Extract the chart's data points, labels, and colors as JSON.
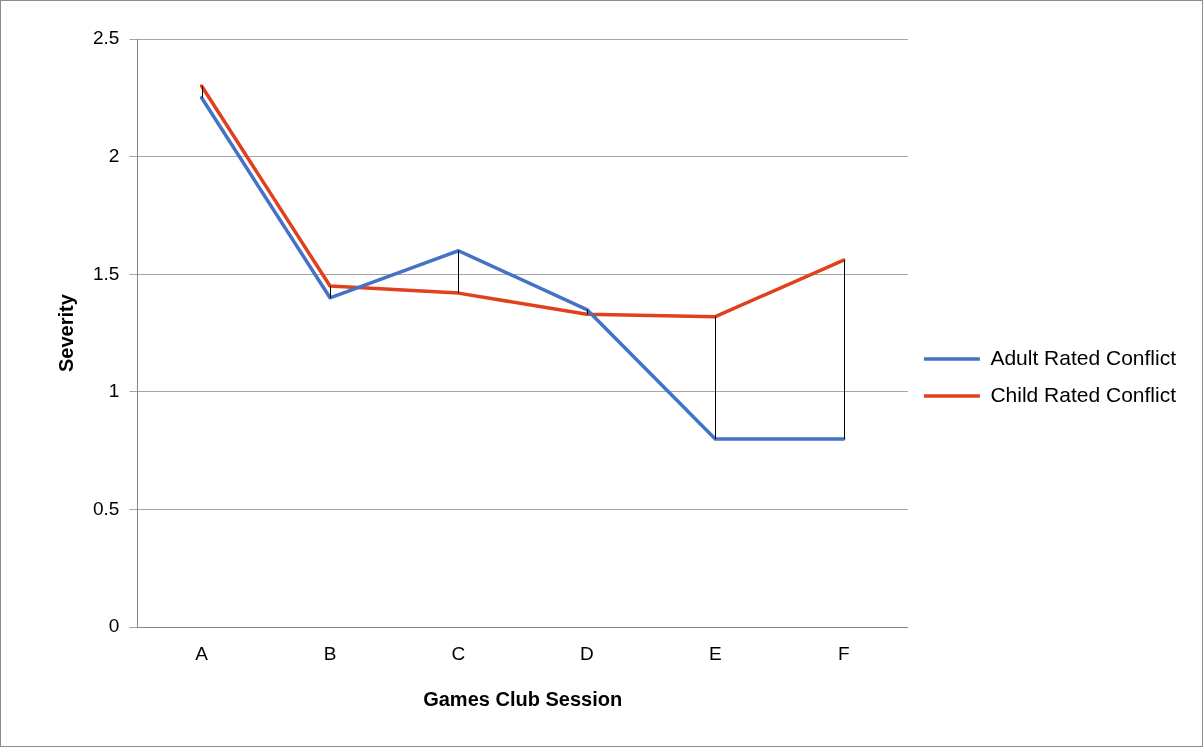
{
  "chart_data": {
    "type": "line",
    "xlabel": "Games Club Session",
    "ylabel": "Severity",
    "categories": [
      "A",
      "B",
      "C",
      "D",
      "E",
      "F"
    ],
    "series": [
      {
        "name": "Adult Rated Conflict",
        "color": "#4472c4",
        "values": [
          2.25,
          1.4,
          1.6,
          1.35,
          0.8,
          0.8
        ]
      },
      {
        "name": "Child Rated Conflict",
        "color": "#e0401c",
        "values": [
          2.3,
          1.45,
          1.42,
          1.33,
          1.32,
          1.56
        ],
        "errors": [
          [
            2.25,
            2.3
          ],
          [
            1.4,
            1.45
          ],
          [
            1.42,
            1.6
          ],
          [
            1.33,
            1.35
          ],
          [
            0.8,
            1.32
          ],
          [
            0.8,
            1.56
          ]
        ]
      }
    ],
    "ylim": [
      0,
      2.5
    ],
    "yticks": [
      0,
      0.5,
      1,
      1.5,
      2,
      2.5
    ],
    "grid": "y",
    "legend": "right",
    "marker": "none"
  }
}
